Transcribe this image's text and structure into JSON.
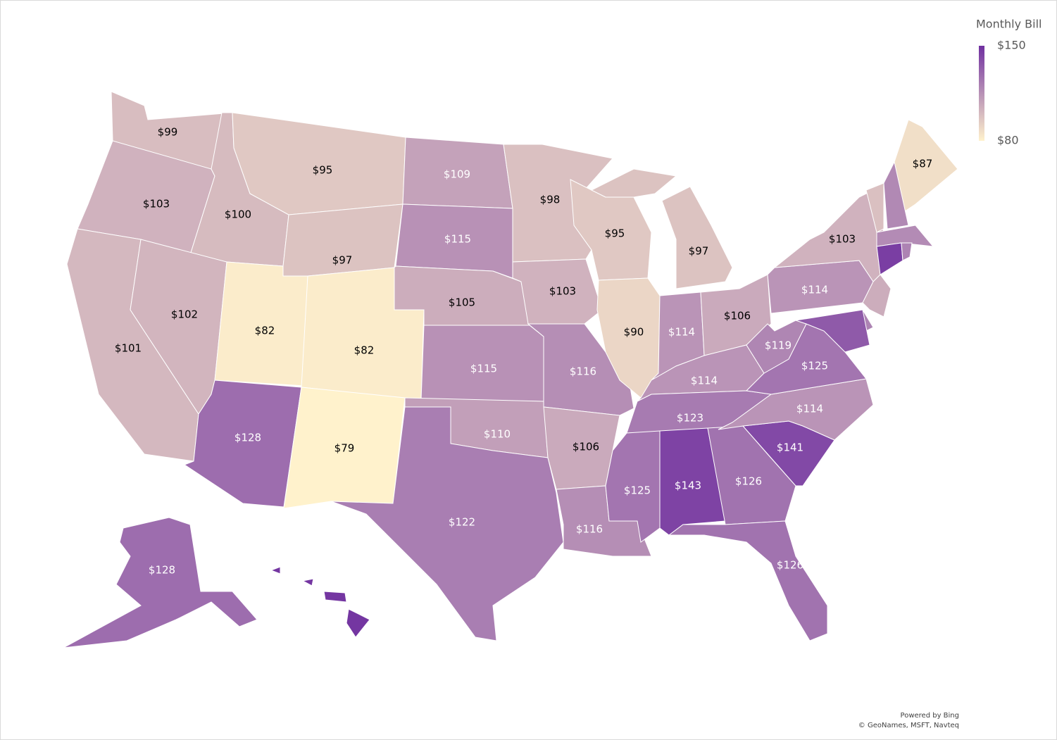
{
  "chart_data": {
    "type": "choropleth",
    "legend": {
      "title": "Monthly Bill",
      "max": {
        "value": 150,
        "label": "$150"
      },
      "min": {
        "value": 80,
        "label": "$80"
      },
      "colors": [
        "#fff2cc",
        "#7030a0"
      ]
    },
    "values": [
      99,
      103,
      101,
      100,
      102,
      95,
      97,
      82,
      82,
      128,
      79,
      109,
      115,
      105,
      115,
      110,
      122,
      98,
      103,
      116,
      106,
      116,
      95,
      90,
      97,
      114,
      106,
      114,
      123,
      125,
      143,
      126,
      126,
      141,
      114,
      125,
      119,
      114,
      103,
      87,
      128,
      98,
      118,
      117,
      145,
      120,
      105,
      120,
      135,
      148
    ],
    "value_labels": [
      "$99",
      "$103",
      "$101",
      "$100",
      "$102",
      "$95",
      "$97",
      "$82",
      "$82",
      "$128",
      "$79",
      "$109",
      "$115",
      "$105",
      "$115",
      "$110",
      "$122",
      "$98",
      "$103",
      "$116",
      "$106",
      "$116",
      "$95",
      "$90",
      "$97",
      "$114",
      "$106",
      "$114",
      "$123",
      "$125",
      "$143",
      "$126",
      "$126",
      "$141",
      "$114",
      "$125",
      "$119",
      "$114",
      "$103",
      "$87",
      "$128",
      null,
      null,
      null,
      null,
      null,
      null,
      null,
      null,
      null
    ],
    "attribution": [
      "Powered by Bing",
      "© GeoNames, MSFT, Navteq"
    ]
  }
}
